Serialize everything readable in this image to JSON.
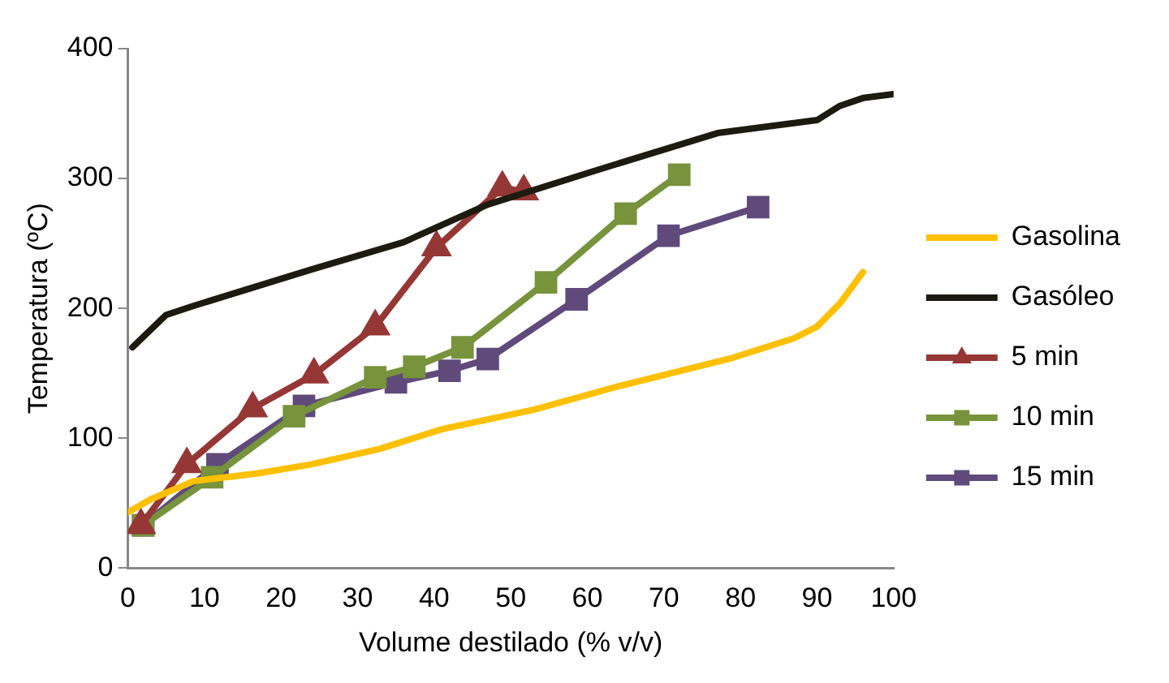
{
  "chart_data": {
    "type": "line",
    "xlabel": "Volume destilado (% v/v)",
    "ylabel": "Temperatura (ºC)",
    "xlim": [
      0,
      100
    ],
    "xticks": [
      0,
      10,
      20,
      30,
      40,
      50,
      60,
      70,
      80,
      90,
      100
    ],
    "ylim": [
      0,
      400
    ],
    "yticks": [
      0,
      100,
      200,
      300,
      400
    ],
    "grid": false,
    "legend": "right",
    "series": [
      {
        "name": "Gasolina",
        "color": "#ffc000",
        "marker": "none",
        "x": [
          0,
          3,
          8.6,
          17,
          24,
          33,
          41,
          53,
          64,
          79,
          87,
          90,
          93,
          96
        ],
        "values": [
          43,
          53,
          67,
          73,
          80,
          92,
          107,
          122,
          140,
          162,
          177,
          186,
          204,
          228
        ]
      },
      {
        "name": "Gasóleo",
        "color": "#1d1b10",
        "marker": "none",
        "x": [
          0.6,
          5,
          8.6,
          24,
          36,
          47,
          61,
          77,
          90,
          93,
          96,
          100
        ],
        "values": [
          170,
          195,
          202,
          230,
          251,
          280,
          306,
          335,
          345,
          356,
          362,
          365
        ]
      },
      {
        "name": "5 min",
        "color": "#953735",
        "marker": "triangle",
        "x": [
          1.7,
          7.7,
          16.3,
          24.3,
          32.3,
          40.3,
          48.9,
          51.7
        ],
        "values": [
          33,
          80,
          123,
          149,
          186,
          247,
          293,
          290
        ]
      },
      {
        "name": "10 min",
        "color": "#77933c",
        "marker": "square",
        "x": [
          2,
          11,
          21.7,
          32.3,
          37.4,
          43.7,
          54.6,
          65,
          72
        ],
        "values": [
          33,
          70,
          117,
          147,
          155,
          170,
          220,
          273,
          303
        ]
      },
      {
        "name": "15 min",
        "color": "#604a7b",
        "marker": "square",
        "x": [
          2,
          11.7,
          23,
          35,
          42,
          47,
          58.6,
          70.6,
          82.3
        ],
        "values": [
          33,
          80,
          125,
          143,
          152,
          161,
          207,
          256,
          278
        ]
      }
    ]
  }
}
